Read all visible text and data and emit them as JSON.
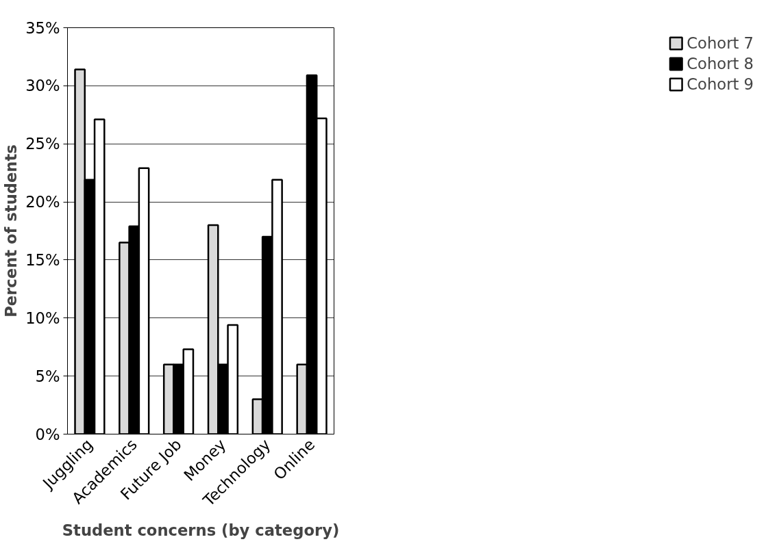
{
  "chart_data": {
    "type": "bar",
    "xlabel": "Student concerns (by category)",
    "ylabel": "Percent of students",
    "categories": [
      "Juggling",
      "Academics",
      "Future Job",
      "Money",
      "Technology",
      "Online"
    ],
    "series": [
      {
        "name": "Cohort 7",
        "color": "#d9d9d9",
        "values": [
          31.4,
          16.5,
          6.0,
          18.0,
          3.0,
          6.0
        ]
      },
      {
        "name": "Cohort 8",
        "color": "#000000",
        "values": [
          21.9,
          17.9,
          6.0,
          6.0,
          17.0,
          30.9
        ]
      },
      {
        "name": "Cohort 9",
        "color": "#ffffff",
        "values": [
          27.1,
          22.9,
          7.3,
          9.4,
          21.9,
          27.2
        ]
      }
    ],
    "ylim": [
      0,
      35
    ],
    "yticks": [
      {
        "value": 0,
        "label": "0%"
      },
      {
        "value": 5,
        "label": "5%"
      },
      {
        "value": 10,
        "label": "10%"
      },
      {
        "value": 15,
        "label": "15%"
      },
      {
        "value": 20,
        "label": "20%"
      },
      {
        "value": 25,
        "label": "25%"
      },
      {
        "value": 30,
        "label": "30%"
      },
      {
        "value": 35,
        "label": "35%"
      }
    ],
    "grid": "y",
    "legend": "right"
  }
}
